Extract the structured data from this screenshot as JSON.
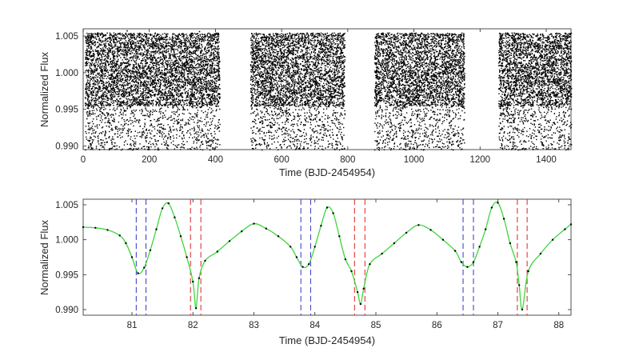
{
  "chart_data": [
    {
      "type": "scatter",
      "title": "",
      "xlabel": "Time (BJD-2454954)",
      "ylabel": "Normalized Flux",
      "xlim": [
        0,
        1475
      ],
      "ylim": [
        0.9895,
        1.006
      ],
      "xticks": [
        "0",
        "200",
        "400",
        "600",
        "800",
        "1000",
        "1200",
        "1400"
      ],
      "yticks": [
        "0.990",
        "0.995",
        "1.000",
        "1.005"
      ],
      "grid": false,
      "legend": "none",
      "marker_color": "#000000",
      "series": [
        {
          "segments": [
            [
              5,
              412
            ],
            [
              505,
              790
            ],
            [
              880,
              1152
            ],
            [
              1255,
              1475
            ]
          ],
          "typical_range": [
            0.9955,
            1.0055
          ],
          "dip_floor": 0.9895,
          "outliers": [
            [
              131,
              1.0058
            ],
            [
              350,
              1.0057
            ],
            [
              612,
              0.9925
            ],
            [
              613,
              0.9935
            ],
            [
              614,
              0.9945
            ],
            [
              615,
              0.9957
            ],
            [
              616,
              0.9968
            ],
            [
              617,
              0.998
            ],
            [
              1322,
              0.9955
            ],
            [
              1423,
              0.9945
            ]
          ]
        }
      ]
    },
    {
      "type": "line",
      "title": "",
      "xlabel": "Time (BJD-2454954)",
      "ylabel": "Normalized Flux",
      "xlim": [
        80.2,
        88.2
      ],
      "ylim": [
        0.9892,
        1.0058
      ],
      "xticks": [
        "81",
        "82",
        "83",
        "84",
        "85",
        "86",
        "87",
        "88"
      ],
      "yticks": [
        "0.990",
        "0.995",
        "1.000",
        "1.005"
      ],
      "grid": false,
      "legend": "none",
      "series": [
        {
          "style": "points",
          "color": "#000000",
          "x": [
            80.2,
            80.4,
            80.6,
            80.8,
            80.9,
            81.0,
            81.1,
            81.2,
            81.3,
            81.4,
            81.5,
            81.6,
            81.7,
            81.8,
            81.9,
            82.0,
            82.05,
            82.1,
            82.2,
            82.4,
            82.6,
            82.8,
            83.0,
            83.2,
            83.4,
            83.6,
            83.7,
            83.8,
            83.9,
            84.0,
            84.1,
            84.2,
            84.3,
            84.4,
            84.5,
            84.6,
            84.7,
            84.75,
            84.8,
            84.9,
            85.1,
            85.3,
            85.5,
            85.7,
            85.9,
            86.1,
            86.3,
            86.4,
            86.5,
            86.6,
            86.7,
            86.8,
            86.9,
            87.0,
            87.1,
            87.2,
            87.3,
            87.35,
            87.4,
            87.5,
            87.7,
            87.9,
            88.1,
            88.2
          ],
          "y": [
            1.0018,
            1.0017,
            1.0014,
            1.0006,
            0.9995,
            0.9975,
            0.9952,
            0.996,
            0.9985,
            1.0015,
            1.0045,
            1.0052,
            1.0032,
            1.0005,
            0.9975,
            0.994,
            0.9902,
            0.9945,
            0.997,
            0.9983,
            0.9998,
            1.0012,
            1.0023,
            1.0016,
            1.0005,
            0.999,
            0.9975,
            0.9961,
            0.9965,
            0.999,
            1.002,
            1.0046,
            1.0038,
            1.0005,
            0.9972,
            0.9955,
            0.9925,
            0.9908,
            0.993,
            0.9965,
            0.998,
            0.9995,
            1.001,
            1.0021,
            1.0014,
            1.0,
            0.9984,
            0.9968,
            0.9961,
            0.9968,
            0.999,
            1.0015,
            1.0046,
            1.0053,
            1.003,
            0.9995,
            0.9968,
            0.9935,
            0.99,
            0.9955,
            0.998,
            1.0,
            1.0015,
            1.0022
          ]
        },
        {
          "style": "curve",
          "color": "#3ed63e",
          "x": [
            80.2,
            80.4,
            80.6,
            80.8,
            80.9,
            81.0,
            81.1,
            81.2,
            81.3,
            81.4,
            81.5,
            81.6,
            81.7,
            81.8,
            81.9,
            82.0,
            82.05,
            82.1,
            82.2,
            82.4,
            82.6,
            82.8,
            83.0,
            83.2,
            83.4,
            83.6,
            83.7,
            83.8,
            83.9,
            84.0,
            84.1,
            84.2,
            84.3,
            84.4,
            84.5,
            84.6,
            84.7,
            84.75,
            84.8,
            84.9,
            85.1,
            85.3,
            85.5,
            85.7,
            85.9,
            86.1,
            86.3,
            86.4,
            86.5,
            86.6,
            86.7,
            86.8,
            86.9,
            87.0,
            87.1,
            87.2,
            87.3,
            87.35,
            87.4,
            87.5,
            87.7,
            87.9,
            88.1,
            88.2
          ],
          "y": [
            1.0018,
            1.0017,
            1.0014,
            1.0006,
            0.9995,
            0.9975,
            0.9952,
            0.996,
            0.9985,
            1.0015,
            1.0045,
            1.0052,
            1.0032,
            1.0005,
            0.9975,
            0.994,
            0.9902,
            0.9945,
            0.997,
            0.9983,
            0.9998,
            1.0012,
            1.0023,
            1.0016,
            1.0005,
            0.999,
            0.9975,
            0.9961,
            0.9965,
            0.999,
            1.002,
            1.0046,
            1.0038,
            1.0005,
            0.9972,
            0.9955,
            0.9925,
            0.9908,
            0.993,
            0.9965,
            0.998,
            0.9995,
            1.001,
            1.0021,
            1.0014,
            1.0,
            0.9984,
            0.9968,
            0.9961,
            0.9968,
            0.999,
            1.0015,
            1.0046,
            1.0053,
            1.003,
            0.9995,
            0.9968,
            0.9935,
            0.99,
            0.9955,
            0.998,
            1.0,
            1.0015,
            1.0022
          ]
        }
      ],
      "vlines": [
        {
          "x": 81.07,
          "color": "#3333cc"
        },
        {
          "x": 81.23,
          "color": "#3333cc"
        },
        {
          "x": 81.96,
          "color": "#dd2222"
        },
        {
          "x": 82.13,
          "color": "#dd2222"
        },
        {
          "x": 83.77,
          "color": "#3333cc"
        },
        {
          "x": 83.93,
          "color": "#3333cc"
        },
        {
          "x": 84.65,
          "color": "#dd2222"
        },
        {
          "x": 84.82,
          "color": "#dd2222"
        },
        {
          "x": 86.43,
          "color": "#3333cc"
        },
        {
          "x": 86.6,
          "color": "#3333cc"
        },
        {
          "x": 87.32,
          "color": "#dd2222"
        },
        {
          "x": 87.48,
          "color": "#dd2222"
        }
      ]
    }
  ]
}
